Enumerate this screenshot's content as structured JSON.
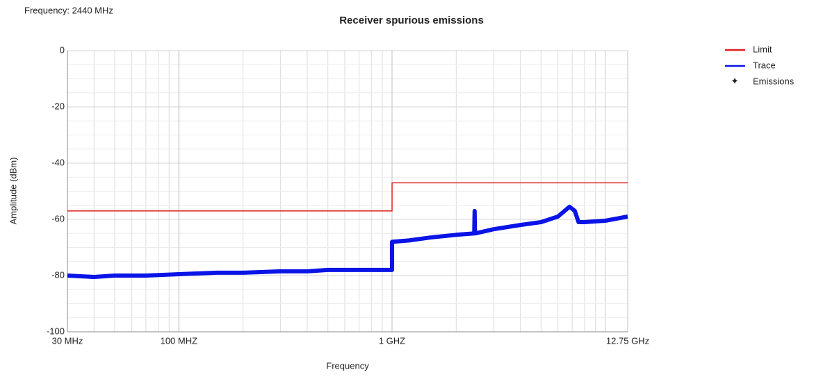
{
  "chart_data": {
    "type": "line",
    "title": "Receiver spurious emissions",
    "subtitle": "Frequency: 2440 MHz",
    "x_label": "Frequency",
    "y_label": "Amplitude (dBm)",
    "x_log": true,
    "xlim": [
      30,
      12750
    ],
    "ylim": [
      -100,
      0
    ],
    "xticks": [
      {
        "value": 30,
        "label": "30 MHz"
      },
      {
        "value": 100,
        "label": "100 MHZ"
      },
      {
        "value": 1000,
        "label": "1 GHZ"
      },
      {
        "value": 12750,
        "label": "12.75 GHz"
      }
    ],
    "yticks": [
      0,
      -20,
      -40,
      -60,
      -80,
      -100
    ],
    "grid": true,
    "legend": "right",
    "series": [
      {
        "name": "Limit",
        "color": "#e02020",
        "marker": "line",
        "x": [
          30,
          1000,
          1000,
          12750
        ],
        "values": [
          -57,
          -57,
          -47,
          -47
        ]
      },
      {
        "name": "Trace",
        "color": "#0a14e6",
        "marker": "line",
        "x": [
          30,
          40,
          50,
          70,
          100,
          150,
          200,
          300,
          400,
          500,
          700,
          1000,
          1000,
          1200,
          1500,
          2000,
          2430,
          2440,
          2450,
          3000,
          4000,
          5000,
          6000,
          6800,
          7200,
          7500,
          8000,
          10000,
          12750
        ],
        "values": [
          -80,
          -80.5,
          -80,
          -80,
          -79.5,
          -79,
          -79,
          -78.5,
          -78.5,
          -78,
          -78,
          -78,
          -68,
          -67.5,
          -66.5,
          -65.5,
          -65,
          -57,
          -65,
          -63.5,
          -62,
          -61,
          -59,
          -55.5,
          -57,
          -61,
          -61,
          -60.5,
          -59
        ]
      },
      {
        "name": "Emissions",
        "color": "#e02020",
        "marker": "star",
        "x": [],
        "values": []
      }
    ]
  }
}
